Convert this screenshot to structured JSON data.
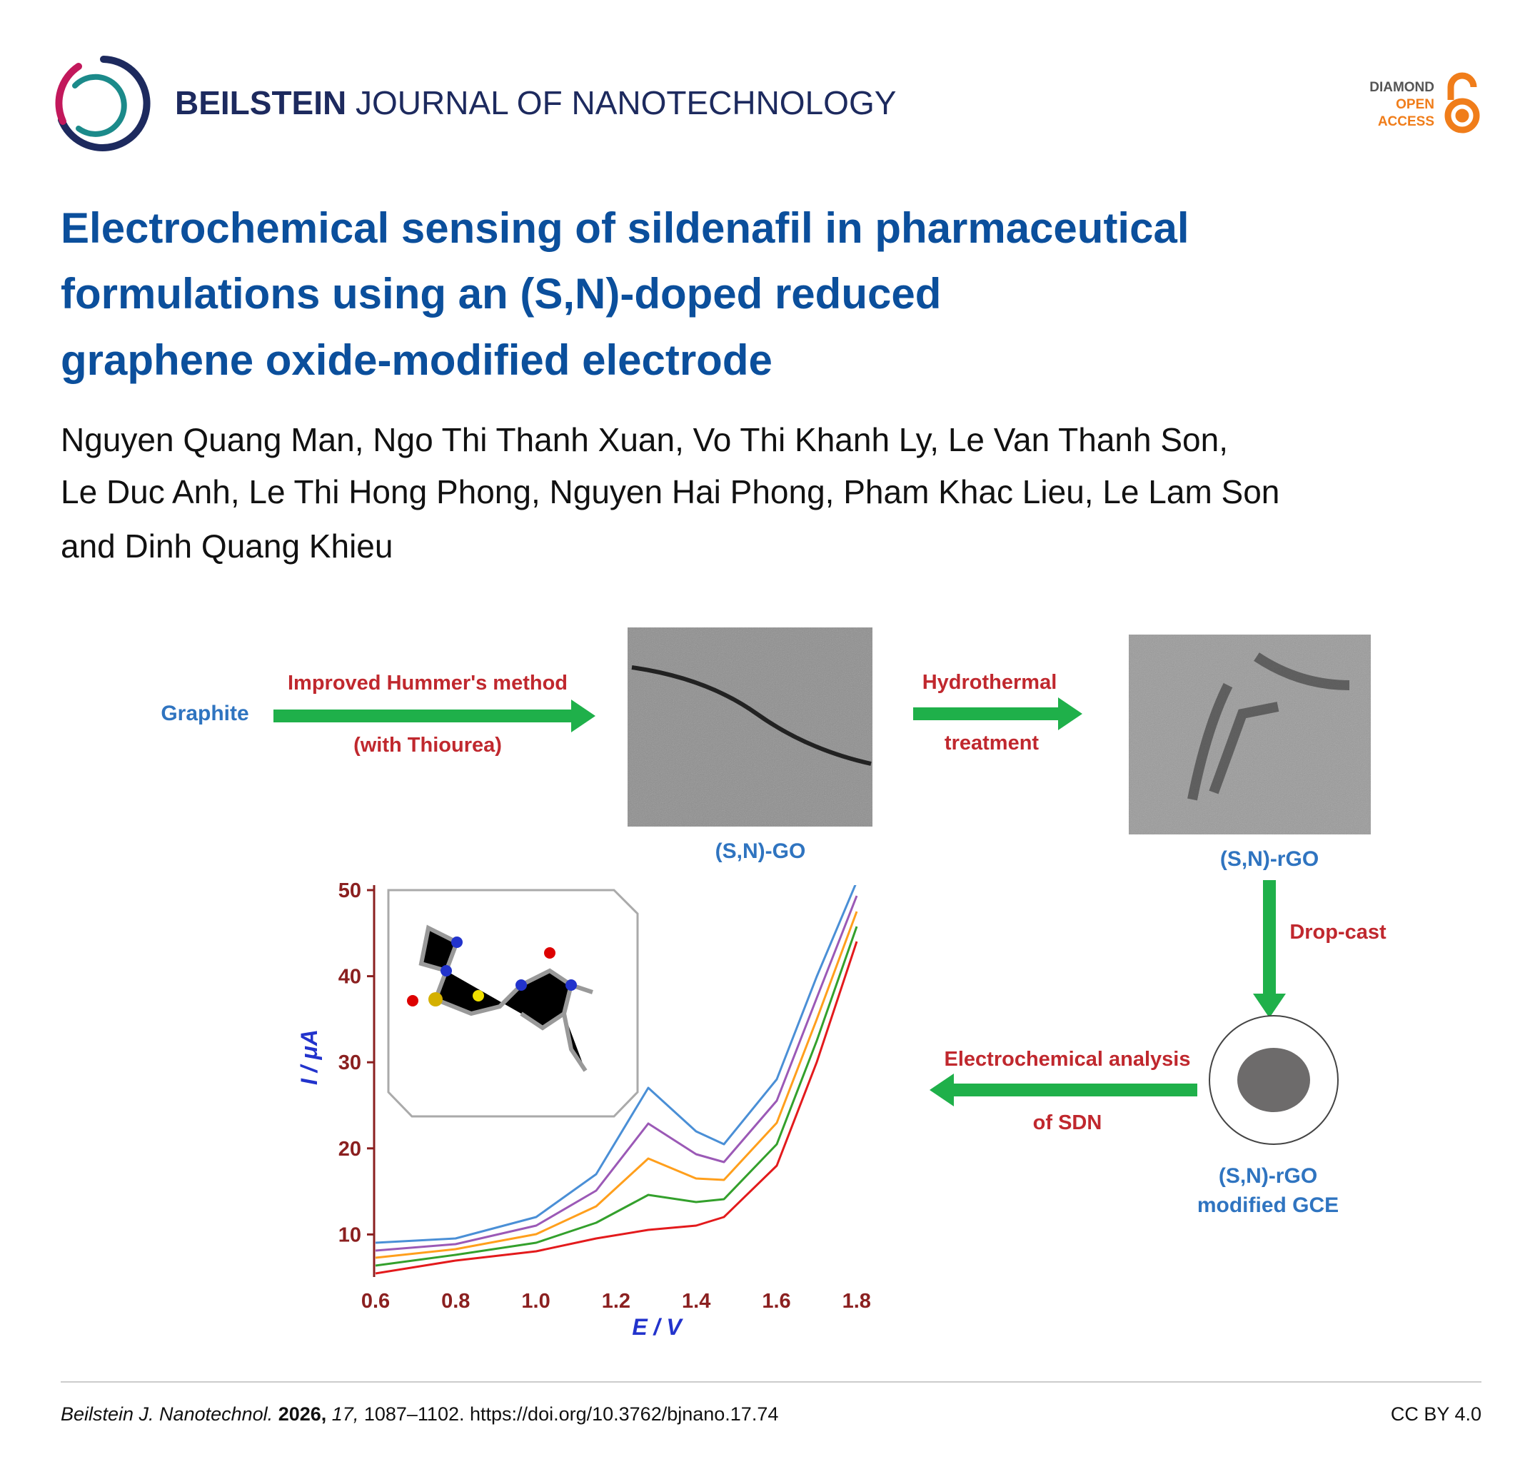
{
  "header": {
    "journal_bold": "BEILSTEIN",
    "journal_rest": "JOURNAL OF NANOTECHNOLOGY",
    "badge": [
      "DIAMOND",
      "OPEN",
      "ACCESS"
    ]
  },
  "title_lines": [
    "Electrochemical sensing of sildenafil in pharmaceutical",
    "formulations using an (S,N)-doped reduced",
    "graphene oxide-modified electrode"
  ],
  "author_lines": [
    "Nguyen Quang Man, Ngo Thi Thanh Xuan, Vo Thi Khanh Ly, Le Van Thanh Son,",
    "Le Duc Anh, Le Thi Hong Phong, Nguyen Hai Phong, Pham Khac Lieu, Le Lam Son",
    "and Dinh Quang Khieu"
  ],
  "figure": {
    "graphite": "Graphite",
    "step1": [
      "Improved Hummer's method",
      "(with Thiourea)"
    ],
    "go": "(S,N)-GO",
    "step2": [
      "Hydrothermal",
      "treatment"
    ],
    "rgo": "(S,N)-rGO",
    "step3": "Drop-cast",
    "electrode": [
      "(S,N)-rGO",
      "modified GCE"
    ],
    "step4": [
      "Electrochemical analysis",
      "of SDN"
    ],
    "plot": {
      "y_label": "I / μA",
      "x_label": "E / V",
      "yticks": [
        "50",
        "40",
        "30",
        "20",
        "10"
      ],
      "xticks": [
        "0.6",
        "0.8",
        "1.0",
        "1.2",
        "1.4",
        "1.6",
        "1.8"
      ]
    }
  },
  "footer": {
    "journal": "Beilstein J. Nanotechnol.",
    "year": "2026,",
    "volume": "17,",
    "pages": "1087–1102.",
    "doi": "https://doi.org/10.3762/bjnano.17.74",
    "license": "CC BY 4.0"
  }
}
